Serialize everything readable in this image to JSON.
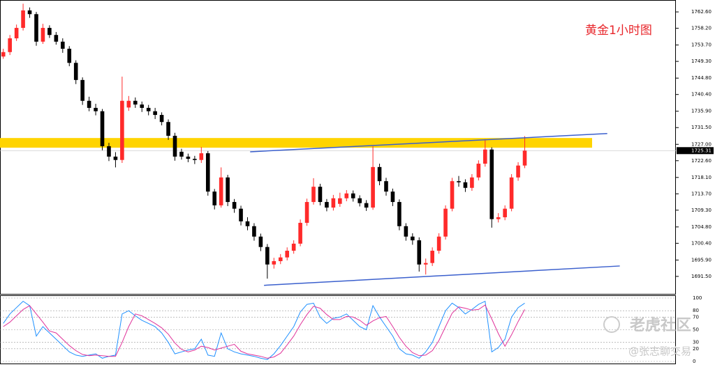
{
  "chart_data": [
    {
      "type": "candlestick",
      "annotation": "黄金1小时图",
      "up_color": "#ff2a2a",
      "down_color": "#000000",
      "xlim": [
        -0.5,
        101.9
      ],
      "ylim": [
        1686.8,
        1765.8
      ],
      "yticks": [
        {
          "value": 1762.6,
          "label": "1762.60"
        },
        {
          "value": 1758.2,
          "label": "1758.20"
        },
        {
          "value": 1753.7,
          "label": "1753.70"
        },
        {
          "value": 1749.3,
          "label": "1749.30"
        },
        {
          "value": 1744.8,
          "label": "1744.80"
        },
        {
          "value": 1740.4,
          "label": "1740.40"
        },
        {
          "value": 1735.9,
          "label": "1735.90"
        },
        {
          "value": 1731.5,
          "label": "1731.50"
        },
        {
          "value": 1727.0,
          "label": "1727.00"
        },
        {
          "value": 1722.6,
          "label": "1722.60"
        },
        {
          "value": 1718.1,
          "label": "1718.10"
        },
        {
          "value": 1713.7,
          "label": "1713.70"
        },
        {
          "value": 1709.3,
          "label": "1709.30"
        },
        {
          "value": 1704.8,
          "label": "1704.80"
        },
        {
          "value": 1700.4,
          "label": "1700.40"
        },
        {
          "value": 1695.9,
          "label": "1695.90"
        },
        {
          "value": 1691.5,
          "label": "1691.50"
        }
      ],
      "last_price": 1725.31,
      "zone": {
        "range": [
          1726.1,
          1728.7
        ],
        "color": "#ffd400"
      },
      "trendlines": [
        {
          "x": [
            37.4,
            91.5
          ],
          "y": [
            1725.0,
            1729.9
          ],
          "color": "#3a5fcd"
        },
        {
          "x": [
            39.5,
            93.4
          ],
          "y": [
            1689.1,
            1694.3
          ],
          "color": "#3a5fcd"
        }
      ],
      "open": [
        1750.6,
        1751.8,
        1755.5,
        1758.3,
        1763.0,
        1762.0,
        1754.6,
        1758.3,
        1756.4,
        1754.6,
        1752.7,
        1748.9,
        1744.3,
        1738.7,
        1736.8,
        1735.9,
        1726.5,
        1723.7,
        1722.8,
        1736.9,
        1738.7,
        1737.7,
        1736.8,
        1735.9,
        1734.9,
        1733.0,
        1729.3,
        1725.0,
        1723.7,
        1723.1,
        1722.8,
        1724.6,
        1714.3,
        1710.6,
        1718.1,
        1711.5,
        1709.7,
        1706.3,
        1705.0,
        1702.2,
        1699.4,
        1694.7,
        1695.6,
        1696.6,
        1698.4,
        1700.3,
        1705.9,
        1711.5,
        1715.6,
        1711.5,
        1710.0,
        1711.0,
        1712.5,
        1713.8,
        1712.5,
        1711.2,
        1710.0,
        1720.9,
        1717.1,
        1714.3,
        1711.5,
        1705.0,
        1702.2,
        1701.2,
        1694.7,
        1695.1,
        1698.4,
        1702.2,
        1709.7,
        1717.1,
        1716.8,
        1715.3,
        1718.1,
        1721.8,
        1725.6,
        1706.9,
        1707.4,
        1709.7,
        1718.1,
        1721.3
      ],
      "high": [
        1752.7,
        1756.4,
        1759.2,
        1764.8,
        1763.8,
        1762.6,
        1759.4,
        1759.0,
        1757.2,
        1755.5,
        1753.4,
        1749.6,
        1745.0,
        1739.8,
        1737.9,
        1736.5,
        1727.4,
        1724.9,
        1745.2,
        1740.0,
        1739.6,
        1738.5,
        1737.6,
        1736.8,
        1735.6,
        1733.7,
        1730.1,
        1725.8,
        1724.5,
        1723.9,
        1726.3,
        1725.2,
        1715.0,
        1720.8,
        1718.8,
        1712.3,
        1710.5,
        1707.4,
        1705.8,
        1703.0,
        1700.2,
        1696.5,
        1697.5,
        1699.3,
        1701.2,
        1706.8,
        1712.4,
        1717.9,
        1716.4,
        1712.3,
        1713.4,
        1714.0,
        1714.7,
        1714.6,
        1713.3,
        1712.0,
        1726.5,
        1721.8,
        1718.0,
        1715.1,
        1712.2,
        1705.8,
        1703.1,
        1702.0,
        1696.3,
        1699.3,
        1703.1,
        1710.6,
        1718.0,
        1718.5,
        1717.6,
        1719.0,
        1722.7,
        1728.4,
        1726.2,
        1708.5,
        1710.6,
        1719.0,
        1722.2,
        1729.2
      ],
      "low": [
        1750.0,
        1751.0,
        1754.8,
        1757.6,
        1761.0,
        1753.5,
        1754.0,
        1755.6,
        1753.8,
        1751.6,
        1748.0,
        1743.2,
        1737.6,
        1735.9,
        1734.8,
        1725.4,
        1722.5,
        1720.8,
        1722.0,
        1736.0,
        1736.8,
        1735.7,
        1734.8,
        1733.8,
        1732.1,
        1728.2,
        1722.6,
        1722.9,
        1722.2,
        1721.7,
        1722.0,
        1713.2,
        1709.5,
        1710.0,
        1710.4,
        1708.6,
        1705.2,
        1703.9,
        1701.1,
        1698.3,
        1690.9,
        1693.6,
        1694.8,
        1695.8,
        1697.6,
        1699.6,
        1705.1,
        1710.8,
        1710.6,
        1709.0,
        1709.2,
        1710.2,
        1711.7,
        1711.6,
        1710.3,
        1709.1,
        1709.4,
        1716.0,
        1713.2,
        1710.4,
        1703.9,
        1701.1,
        1700.0,
        1692.8,
        1692.0,
        1694.3,
        1697.6,
        1701.4,
        1709.0,
        1715.6,
        1714.2,
        1714.5,
        1717.3,
        1721.0,
        1704.6,
        1706.0,
        1706.6,
        1709.0,
        1717.2,
        1720.6
      ],
      "close": [
        1751.8,
        1755.5,
        1758.3,
        1763.0,
        1762.0,
        1754.6,
        1758.3,
        1756.4,
        1754.6,
        1752.7,
        1748.9,
        1744.3,
        1738.7,
        1736.8,
        1735.9,
        1726.5,
        1723.7,
        1722.8,
        1738.7,
        1738.7,
        1737.7,
        1736.8,
        1735.9,
        1734.9,
        1733.0,
        1729.3,
        1723.7,
        1723.7,
        1723.1,
        1722.8,
        1724.6,
        1714.3,
        1710.6,
        1718.1,
        1711.5,
        1709.7,
        1706.3,
        1705.0,
        1702.2,
        1699.4,
        1694.7,
        1695.6,
        1696.6,
        1698.4,
        1700.3,
        1705.9,
        1711.5,
        1715.6,
        1711.5,
        1710.0,
        1712.5,
        1712.5,
        1713.8,
        1712.5,
        1711.2,
        1710.0,
        1720.9,
        1717.1,
        1714.3,
        1711.5,
        1705.0,
        1702.2,
        1701.2,
        1694.7,
        1695.1,
        1698.4,
        1702.2,
        1709.7,
        1717.1,
        1716.8,
        1715.3,
        1718.1,
        1721.8,
        1725.6,
        1706.9,
        1707.4,
        1709.7,
        1718.1,
        1721.3,
        1725.31
      ]
    },
    {
      "type": "line",
      "xlim": [
        -0.5,
        101.9
      ],
      "ylim": [
        -3.3,
        104.4
      ],
      "yticks": [
        0,
        20,
        30,
        50,
        70,
        80,
        100
      ],
      "grid": true,
      "series": [
        {
          "color": "#1e90ff",
          "values": [
            60,
            75,
            85,
            95,
            88,
            40,
            55,
            45,
            35,
            25,
            15,
            10,
            8,
            10,
            12,
            5,
            8,
            10,
            75,
            80,
            72,
            65,
            60,
            55,
            45,
            30,
            12,
            15,
            18,
            20,
            35,
            10,
            8,
            45,
            20,
            15,
            12,
            10,
            8,
            5,
            3,
            12,
            25,
            40,
            55,
            78,
            90,
            92,
            70,
            60,
            68,
            70,
            75,
            65,
            55,
            50,
            88,
            70,
            55,
            40,
            20,
            12,
            10,
            5,
            15,
            30,
            55,
            80,
            92,
            85,
            75,
            82,
            90,
            95,
            15,
            22,
            35,
            70,
            85,
            92
          ]
        },
        {
          "color": "#e0339a",
          "values": [
            55,
            62,
            72,
            82,
            88,
            75,
            62,
            48,
            45,
            35,
            25,
            17,
            11,
            9,
            10,
            9,
            8,
            8,
            30,
            55,
            75,
            72,
            66,
            60,
            53,
            43,
            29,
            19,
            15,
            18,
            24,
            22,
            18,
            21,
            24,
            27,
            16,
            12,
            10,
            8,
            5,
            7,
            13,
            26,
            40,
            58,
            74,
            87,
            84,
            74,
            66,
            66,
            71,
            70,
            65,
            57,
            64,
            69,
            71,
            55,
            38,
            24,
            14,
            9,
            10,
            17,
            33,
            55,
            76,
            86,
            84,
            81,
            82,
            89,
            67,
            44,
            24,
            42,
            63,
            82
          ]
        }
      ]
    }
  ],
  "watermark": {
    "logo": "老虎社区",
    "author": "@张志聊交易"
  }
}
